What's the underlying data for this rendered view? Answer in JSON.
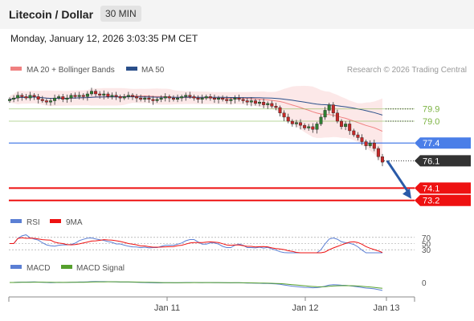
{
  "header": {
    "title": "Litecoin / Dollar",
    "timeframe": "30 MIN"
  },
  "datetime": "Monday, January 12, 2026 3:03:35 PM CET",
  "colors": {
    "bollinger": "#f08080",
    "ma50": "#2a4f8a",
    "green": "#7cb342",
    "blue": "#4a7ee8",
    "dark": "#333333",
    "red": "#ee1111",
    "rsi": "#5b7fd4",
    "macd": "#5b7fd4",
    "macd_signal": "#55a02d",
    "arrow": "#2a5aa8"
  },
  "chart_data": [
    {
      "type": "candlestick",
      "legend": [
        "MA 20 + Bollinger Bands",
        "MA 50"
      ],
      "legend_position": "top-left",
      "credit": "Research © 2026 Trading Central",
      "price_range": [
        72.3,
        82.0
      ],
      "x_labels": [
        "Jan 11",
        "Jan 12",
        "Jan 13"
      ],
      "closes": [
        80.6,
        80.7,
        80.9,
        80.8,
        80.7,
        80.9,
        80.8,
        80.6,
        80.5,
        80.4,
        80.5,
        80.7,
        80.8,
        80.6,
        80.7,
        80.9,
        80.8,
        80.9,
        80.8,
        81.0,
        81.2,
        81.0,
        80.9,
        81.0,
        80.8,
        80.9,
        80.8,
        80.7,
        80.8,
        80.9,
        80.8,
        80.7,
        80.6,
        80.7,
        80.6,
        80.5,
        80.6,
        80.7,
        80.8,
        80.7,
        80.6,
        80.7,
        80.8,
        80.9,
        80.8,
        80.7,
        80.6,
        80.7,
        80.8,
        80.7,
        80.6,
        80.7,
        80.6,
        80.5,
        80.6,
        80.7,
        80.6,
        80.5,
        80.4,
        80.5,
        80.3,
        80.4,
        80.2,
        80.3,
        80.1,
        80.0,
        79.6,
        79.3,
        79.0,
        78.8,
        78.9,
        78.7,
        78.5,
        78.6,
        78.4,
        78.8,
        79.3,
        79.8,
        80.2,
        79.6,
        79.0,
        78.6,
        78.8,
        78.3,
        78.0,
        77.8,
        77.5,
        77.2,
        77.4,
        77.0,
        76.4,
        76.0
      ],
      "levels": [
        {
          "label": "79.9",
          "value": 79.9,
          "style": "green-line"
        },
        {
          "label": "79.0",
          "value": 79.0,
          "style": "green-line"
        },
        {
          "label": "77.4",
          "value": 77.4,
          "style": "blue-badge"
        },
        {
          "label": "76.1",
          "value": 76.1,
          "style": "dark-badge"
        },
        {
          "label": "74.1",
          "value": 74.1,
          "style": "red-badge"
        },
        {
          "label": "73.2",
          "value": 73.2,
          "style": "red-badge"
        }
      ],
      "projection": {
        "from": 76.1,
        "to": 73.2
      }
    },
    {
      "type": "line",
      "legend": [
        "RSI",
        "9MA"
      ],
      "ylim": [
        20,
        80
      ],
      "levels": [
        70,
        50,
        30
      ]
    },
    {
      "type": "line",
      "legend": [
        "MACD",
        "MACD Signal"
      ],
      "levels": [
        0
      ]
    }
  ]
}
